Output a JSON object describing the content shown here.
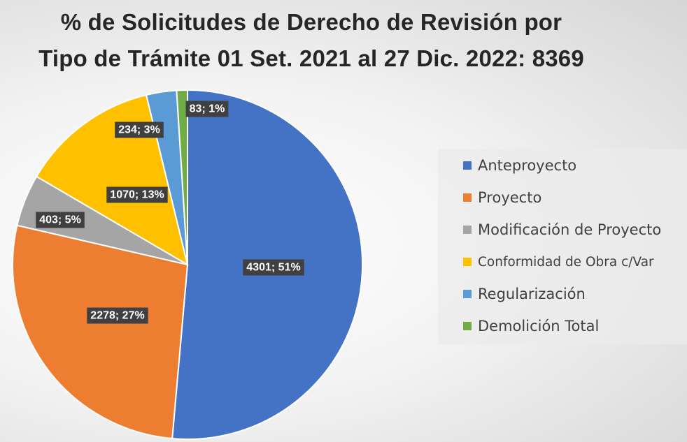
{
  "chart_data": {
    "type": "pie",
    "title_line1": "% de Solicitudes de Derecho de Revisión por",
    "title_line2": "Tipo de Trámite 01 Set. 2021 al 27 Dic. 2022: 8369",
    "legend_position": "right",
    "slices": [
      {
        "name": "Anteproyecto",
        "value": 4301,
        "percent": 51,
        "label": "4301; 51%",
        "color": "#4472C4"
      },
      {
        "name": "Proyecto",
        "value": 2278,
        "percent": 27,
        "label": "2278; 27%",
        "color": "#ED7D31"
      },
      {
        "name": "Modificación de Proyecto",
        "value": 403,
        "percent": 5,
        "label": "403; 5%",
        "color": "#A5A5A5"
      },
      {
        "name": "Conformidad de Obra c/Var",
        "value": 1070,
        "percent": 13,
        "label": "1070; 13%",
        "color": "#FFC000"
      },
      {
        "name": "Regularización",
        "value": 234,
        "percent": 3,
        "label": "234; 3%",
        "color": "#5B9BD5"
      },
      {
        "name": "Demolición Total",
        "value": 83,
        "percent": 1,
        "label": "83; 1%",
        "color": "#70AD47"
      }
    ]
  }
}
